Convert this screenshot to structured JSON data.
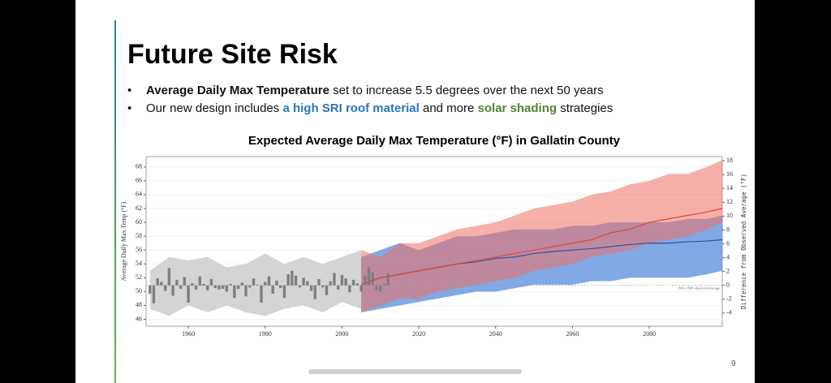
{
  "slide": {
    "title": "Future Site Risk",
    "bullets": [
      [
        "Average Daily Max Temperature",
        " set to increase 5.5 degrees over the next 50 years"
      ],
      [
        "Our new design includes ",
        "a high SRI roof material",
        " and more ",
        "solar shading",
        " strategies"
      ]
    ],
    "page_number": "9"
  },
  "chart_data": {
    "type": "area",
    "title": "Expected Average Daily Max Temperature (°F) in Gallatin County",
    "ylabel": "Average Daily Max Temp (°F)",
    "y2label": "Difference from Observed Average (°F)",
    "xlim": [
      1949,
      2099
    ],
    "xticks": [
      1960,
      1980,
      2000,
      2020,
      2040,
      2060,
      2080
    ],
    "ylim": [
      45,
      69.5
    ],
    "yticks": [
      46,
      48,
      50,
      52,
      54,
      56,
      58,
      60,
      62,
      64,
      66,
      68
    ],
    "y2lim": [
      -5.9,
      18.6
    ],
    "y2ticks": [
      -4,
      -2,
      0,
      2,
      4,
      6,
      8,
      10,
      12,
      14,
      16,
      18
    ],
    "grid": true,
    "reference_line": {
      "value": 0,
      "axis": "y2",
      "label": "1961-1990 observed average"
    },
    "bands": [
      {
        "color": "#d4d4d4",
        "x": [
          1950,
          1955,
          1960,
          1965,
          1970,
          1975,
          1980,
          1985,
          1990,
          1995,
          2000,
          2005
        ],
        "upper": [
          53,
          55,
          54.5,
          55,
          53.5,
          54,
          55.5,
          54,
          55,
          54,
          55,
          56
        ],
        "lower": [
          47.5,
          46.5,
          48,
          47,
          48,
          47,
          46.5,
          47.5,
          48,
          47,
          48.5,
          47.5
        ]
      },
      {
        "color": "rgba(96,148,224,0.8)",
        "x": [
          2005,
          2010,
          2015,
          2020,
          2025,
          2030,
          2035,
          2040,
          2045,
          2050,
          2055,
          2060,
          2065,
          2070,
          2075,
          2080,
          2085,
          2090,
          2095,
          2099
        ],
        "upper": [
          55,
          56,
          57,
          56,
          57,
          58,
          58,
          58.5,
          59,
          59,
          59,
          59.5,
          59.5,
          60,
          60,
          60,
          60,
          60.5,
          60.5,
          61
        ],
        "lower": [
          47,
          47.5,
          48,
          48.5,
          49,
          49.5,
          50,
          50,
          50.5,
          51,
          51,
          51,
          51.5,
          51.5,
          52,
          52,
          52,
          52,
          52.5,
          53
        ]
      },
      {
        "color": "rgba(240,112,98,0.55)",
        "x": [
          2005,
          2010,
          2015,
          2020,
          2025,
          2030,
          2035,
          2040,
          2045,
          2050,
          2055,
          2060,
          2065,
          2070,
          2075,
          2080,
          2085,
          2090,
          2095,
          2099
        ],
        "upper": [
          56,
          55,
          57,
          57,
          58,
          59,
          59.5,
          60,
          61,
          62,
          62.5,
          63,
          64,
          64.5,
          65.5,
          66,
          67,
          67,
          68,
          69
        ],
        "lower": [
          47,
          48,
          49,
          49,
          50,
          50.5,
          51,
          51.5,
          52,
          53,
          53.5,
          54,
          55,
          55.5,
          56,
          57,
          57.5,
          58,
          59,
          60
        ]
      }
    ],
    "bars": {
      "color": "#7f7f7f",
      "axis": "y2",
      "x": [
        1950,
        1951,
        1952,
        1953,
        1954,
        1955,
        1956,
        1957,
        1958,
        1959,
        1960,
        1961,
        1962,
        1963,
        1964,
        1965,
        1966,
        1967,
        1968,
        1969,
        1970,
        1971,
        1972,
        1973,
        1974,
        1975,
        1976,
        1977,
        1978,
        1979,
        1980,
        1981,
        1982,
        1983,
        1984,
        1985,
        1986,
        1987,
        1988,
        1989,
        1990,
        1991,
        1992,
        1993,
        1994,
        1995,
        1996,
        1997,
        1998,
        1999,
        2000,
        2001,
        2002,
        2003,
        2004,
        2005,
        2006,
        2007,
        2008,
        2009,
        2010,
        2011,
        2012
      ],
      "values": [
        -1.2,
        -2.6,
        1.0,
        0.5,
        -0.8,
        2.5,
        -1.5,
        0.8,
        -0.5,
        1.2,
        -2.5,
        0.3,
        -0.6,
        1.3,
        0.2,
        -0.7,
        0.9,
        -0.4,
        -0.6,
        -0.5,
        -0.9,
        0.2,
        -1.8,
        -0.5,
        0.4,
        -1.6,
        -0.3,
        1.0,
        0.1,
        -2.5,
        0.5,
        1.3,
        -1.2,
        0.7,
        -0.4,
        -1.8,
        1.6,
        2.1,
        1.4,
        -0.3,
        1.1,
        0.6,
        -0.8,
        -2.0,
        0.9,
        -0.3,
        -1.4,
        0.6,
        1.8,
        -0.6,
        1.5,
        1.0,
        -1.0,
        0.8,
        0.3,
        -0.9,
        1.4,
        2.6,
        1.9,
        -0.7,
        -0.9,
        0.2,
        1.8
      ]
    },
    "series": [
      {
        "color": "#2f4fa8",
        "x": [
          2005,
          2010,
          2015,
          2020,
          2025,
          2030,
          2035,
          2040,
          2045,
          2050,
          2055,
          2060,
          2065,
          2070,
          2075,
          2080,
          2085,
          2090,
          2095,
          2099
        ],
        "values": [
          51,
          52,
          52.5,
          53,
          53.5,
          54,
          54.3,
          54.8,
          55,
          55.5,
          55.8,
          56,
          56.2,
          56.5,
          56.8,
          57,
          57,
          57.2,
          57.3,
          57.5
        ]
      },
      {
        "color": "#e0473a",
        "x": [
          2005,
          2010,
          2015,
          2020,
          2025,
          2030,
          2035,
          2040,
          2045,
          2050,
          2055,
          2060,
          2065,
          2070,
          2075,
          2080,
          2085,
          2090,
          2095,
          2099
        ],
        "values": [
          51,
          52,
          52.5,
          53,
          53.5,
          54,
          54.5,
          55,
          55.5,
          56,
          56.5,
          57,
          57.5,
          58.5,
          59,
          60,
          60.5,
          61,
          61.5,
          62
        ]
      }
    ]
  }
}
